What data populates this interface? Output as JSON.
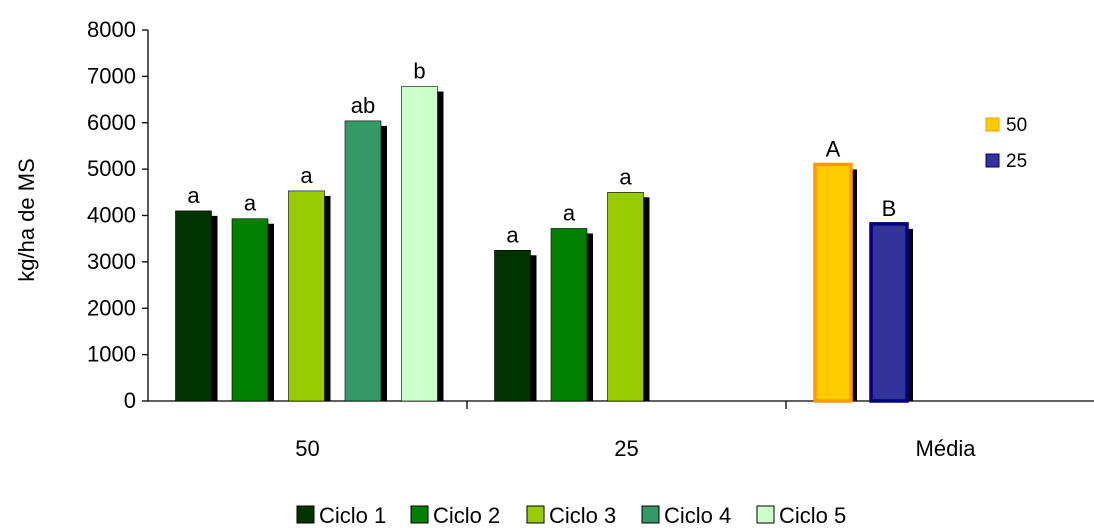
{
  "chart_data": {
    "type": "bar",
    "title": "",
    "xlabel": "",
    "ylabel": "kg/ha de MS",
    "ylim": [
      0,
      8000
    ],
    "yticks": [
      "0",
      "1000",
      "2000",
      "3000",
      "4000",
      "5000",
      "6000",
      "7000",
      "8000"
    ],
    "categories": [
      "50",
      "25",
      "Média"
    ],
    "grid": false,
    "series": [
      {
        "name": "Ciclo 1",
        "color": "#003300",
        "values": [
          4100,
          3250,
          null
        ],
        "labels": [
          "a",
          "a",
          null
        ]
      },
      {
        "name": "Ciclo 2",
        "color": "#008000",
        "values": [
          3930,
          3720,
          null
        ],
        "labels": [
          "a",
          "a",
          null
        ]
      },
      {
        "name": "Ciclo 3",
        "color": "#99cc00",
        "values": [
          4530,
          4500,
          null
        ],
        "labels": [
          "a",
          "a",
          null
        ]
      },
      {
        "name": "Ciclo 4",
        "color": "#339966",
        "values": [
          6040,
          null,
          null
        ],
        "labels": [
          "ab",
          null,
          null
        ]
      },
      {
        "name": "Ciclo 5",
        "color": "#ccffcc",
        "values": [
          6780,
          null,
          null
        ],
        "labels": [
          "b",
          null,
          null
        ]
      }
    ],
    "media_series": [
      {
        "name": "50",
        "color": "#ffcc00",
        "border": "#ff9900",
        "value": 5100,
        "label": "A"
      },
      {
        "name": "25",
        "color": "#333399",
        "border": "#000080",
        "value": 3820,
        "label": "B"
      }
    ],
    "legend_bottom": "bottom-center",
    "legend_media": "right"
  }
}
